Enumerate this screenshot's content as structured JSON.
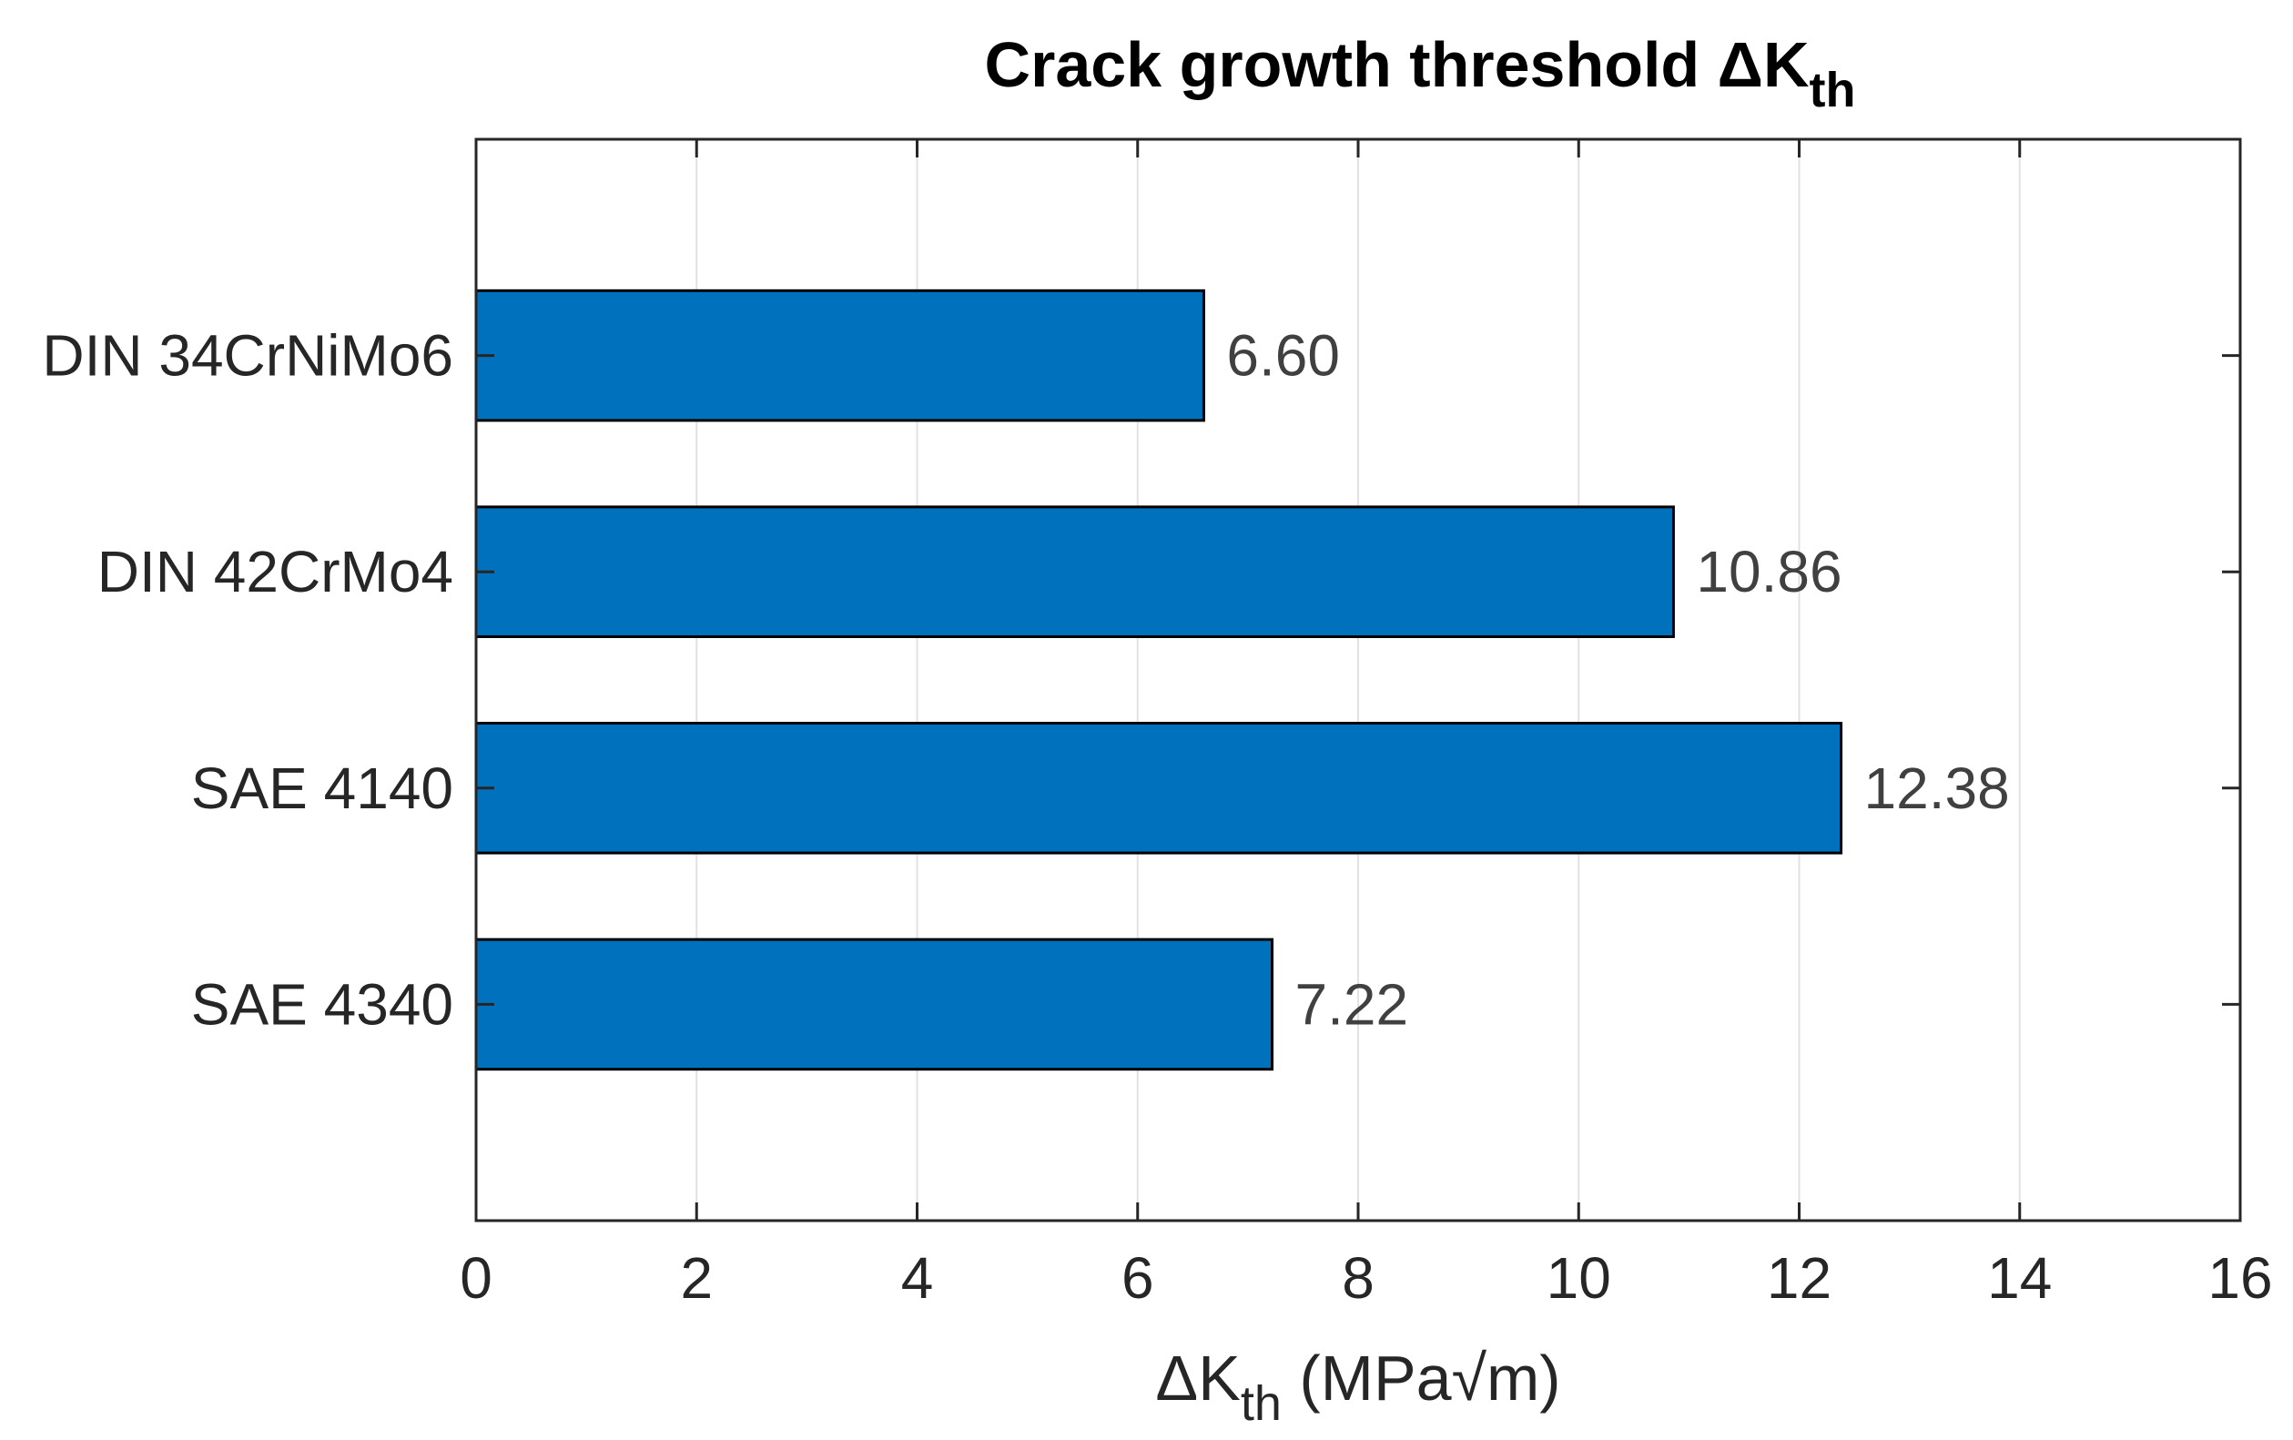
{
  "chart_data": {
    "type": "bar",
    "orientation": "horizontal",
    "title": {
      "main": "Crack growth threshold ΔK",
      "subscript": "th"
    },
    "xlabel": {
      "pre": "ΔK",
      "subscript": "th",
      "post": " (MPa√m)"
    },
    "ylabel": "",
    "categories": [
      "DIN 34CrNiMo6",
      "DIN 42CrMo4",
      "SAE 4140",
      "SAE 4340"
    ],
    "values": [
      6.6,
      10.86,
      12.38,
      7.22
    ],
    "value_labels": [
      "6.60",
      "10.86",
      "12.38",
      "7.22"
    ],
    "xlim": [
      0,
      16
    ],
    "xticks": [
      0,
      2,
      4,
      6,
      8,
      10,
      12,
      14,
      16
    ],
    "xtick_labels": [
      "0",
      "2",
      "4",
      "6",
      "8",
      "10",
      "12",
      "14",
      "16"
    ],
    "grid": "vertical",
    "legend": "none",
    "bar_color": "#0072bd",
    "bar_edge_color": "#000000"
  }
}
